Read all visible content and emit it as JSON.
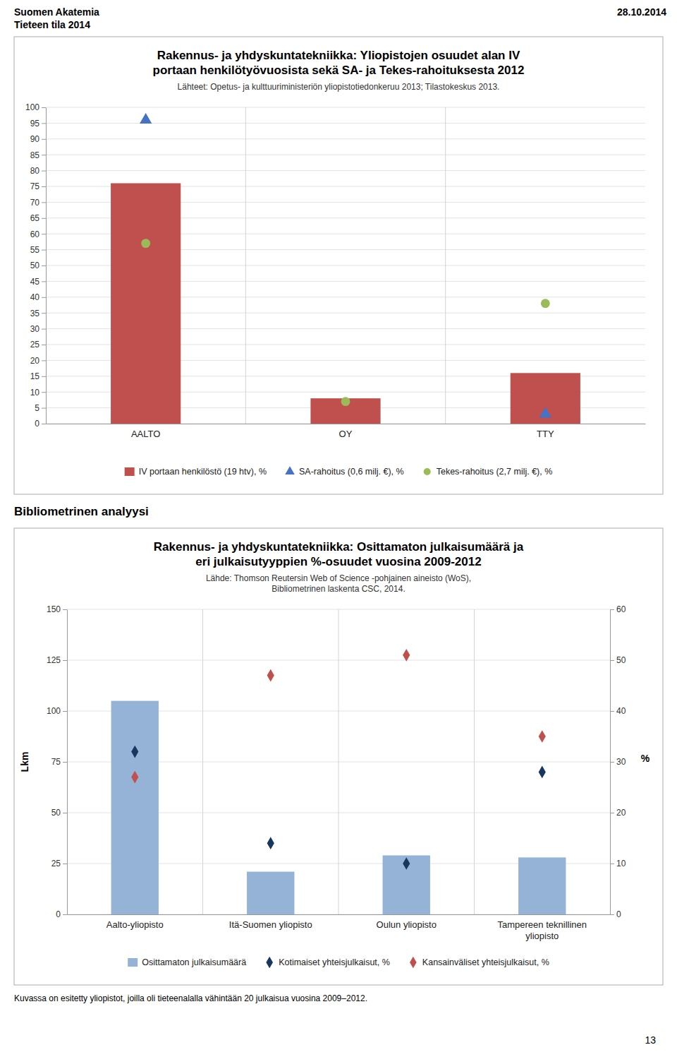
{
  "page_header_left": [
    "Suomen Akatemia",
    "Tieteen tila 2014"
  ],
  "page_header_right": "28.10.2014",
  "section_header": "Bibliometrinen analyysi",
  "footer": "Kuvassa on esitetty yliopistot, joilla oli tieteenalalla vähintään 20 julkaisua vuosina 2009–2012.",
  "page_number": "13",
  "chart_data": [
    {
      "type": "bar",
      "title": "Rakennus- ja yhdyskuntatekniikka: Yliopistojen osuudet alan IV\nportaan henkilötyövuosista sekä SA- ja Tekes-rahoituksesta 2012",
      "subtitle": "Lähteet: Opetus- ja kulttuuriministeriön yliopistotiedonkeruu 2013; Tilastokeskus 2013.",
      "categories": [
        "AALTO",
        "OY",
        "TTY"
      ],
      "series": [
        {
          "name": "IV portaan henkilöstö (19 htv), %",
          "type": "bar",
          "color": "#C0504D",
          "values": [
            76,
            8,
            16
          ]
        },
        {
          "name": "SA-rahoitus (0,6 milj. €), %",
          "type": "scatter",
          "marker": "triangle",
          "color": "#4472C4",
          "values": [
            96,
            null,
            3
          ]
        },
        {
          "name": "Tekes-rahoitus (2,7 milj. €), %",
          "type": "scatter",
          "marker": "circle",
          "color": "#9BBB59",
          "values": [
            57,
            7,
            38
          ]
        }
      ],
      "ylim": [
        0,
        100
      ],
      "yticks": [
        0,
        5,
        10,
        15,
        20,
        25,
        30,
        35,
        40,
        45,
        50,
        55,
        60,
        65,
        70,
        75,
        80,
        85,
        90,
        95,
        100
      ],
      "grid": true,
      "legend": "bottom"
    },
    {
      "type": "bar",
      "title": "Rakennus- ja yhdyskuntatekniikka: Osittamaton julkaisumäärä ja\neri julkaisutyyppien %-osuudet vuosina 2009-2012",
      "subtitle": "Lähde: Thomson Reutersin Web of Science -pohjainen aineisto (WoS),\nBibliometrinen laskenta CSC, 2014.",
      "categories": [
        "Aalto-yliopisto",
        "Itä-Suomen yliopisto",
        "Oulun yliopisto",
        "Tampereen teknillinen\nyliopisto"
      ],
      "series": [
        {
          "name": "Osittamaton julkaisumäärä",
          "type": "bar",
          "color": "#95B3D7",
          "values": [
            105,
            21,
            29,
            28
          ]
        },
        {
          "name": "Kotimaiset yhteisjulkaisut, %",
          "type": "scatter",
          "marker": "diamond",
          "color": "#17375E",
          "axis": "y2",
          "values": [
            32,
            14,
            10,
            28
          ]
        },
        {
          "name": "Kansainväliset yhteisjulkaisut, %",
          "type": "scatter",
          "marker": "diamond",
          "color": "#C0504D",
          "axis": "y2",
          "values": [
            27,
            47,
            51,
            35
          ]
        }
      ],
      "ylabel": "Lkm",
      "y2label": "%",
      "ylim": [
        0,
        150
      ],
      "yticks": [
        0,
        25,
        50,
        75,
        100,
        125,
        150
      ],
      "y2lim": [
        0,
        60
      ],
      "y2ticks": [
        0,
        10,
        20,
        30,
        40,
        50,
        60
      ],
      "grid": true,
      "legend": "bottom"
    }
  ]
}
